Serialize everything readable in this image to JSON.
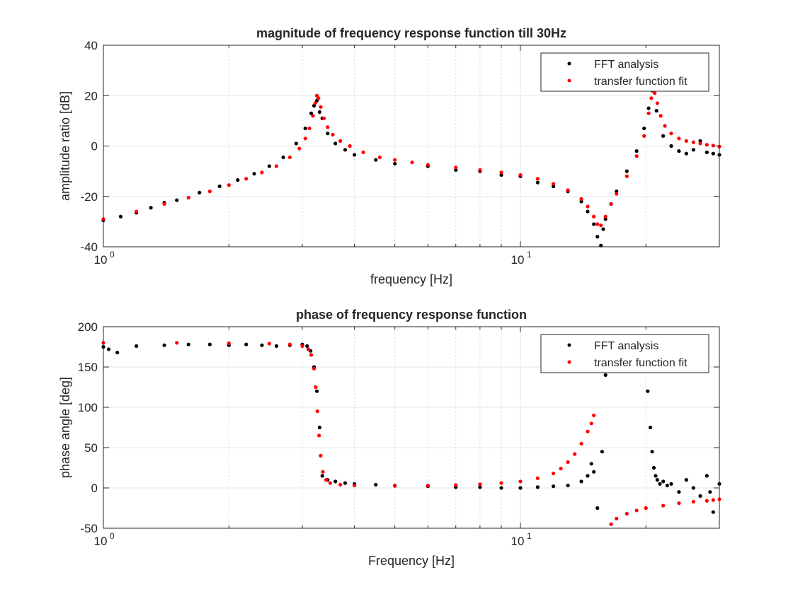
{
  "chart_data": [
    {
      "type": "scatter",
      "title": "magnitude of frequency response function till 30Hz",
      "xlabel": "frequency [Hz]",
      "ylabel": "amplitude ratio [dB]",
      "xscale": "log",
      "xlim": [
        1,
        30
      ],
      "ylim": [
        -40,
        40
      ],
      "yticks": [
        -40,
        -20,
        0,
        20,
        40
      ],
      "ytick_labels": [
        "-40",
        "-20",
        "0",
        "20",
        "40"
      ],
      "xtick_major": [
        1,
        10
      ],
      "xtick_labels": [
        {
          "base": "10",
          "exp": "0"
        },
        {
          "base": "10",
          "exp": "1"
        }
      ],
      "grid": true,
      "legend_position": "top-right",
      "series": [
        {
          "name": "FFT analysis",
          "color": "#000000",
          "x": [
            1.0,
            1.1,
            1.2,
            1.3,
            1.4,
            1.5,
            1.7,
            1.9,
            2.1,
            2.3,
            2.5,
            2.7,
            2.9,
            3.05,
            3.15,
            3.2,
            3.25,
            3.3,
            3.35,
            3.45,
            3.6,
            3.8,
            4.0,
            4.5,
            5.0,
            6.0,
            7.0,
            8.0,
            9.0,
            10.0,
            11.0,
            12.0,
            13.0,
            14.0,
            14.5,
            15.0,
            15.3,
            15.6,
            15.8,
            16.0,
            16.5,
            17.0,
            18.0,
            19.0,
            19.8,
            20.3,
            20.7,
            21.2,
            22.0,
            23.0,
            24.0,
            25.0,
            26.0,
            27.0,
            28.0,
            29.0,
            30.0
          ],
          "y": [
            -29.5,
            -28,
            -26.5,
            -24.5,
            -22.5,
            -21.5,
            -18.5,
            -16,
            -13.5,
            -11,
            -8,
            -4.5,
            1,
            7,
            13,
            16,
            18,
            13.5,
            11,
            5,
            1,
            -1.5,
            -3.5,
            -5.5,
            -7,
            -8,
            -9.5,
            -10,
            -11.5,
            -12,
            -14.5,
            -16,
            -18,
            -22,
            -26,
            -31,
            -36,
            -39.5,
            -33,
            -29,
            -23,
            -18,
            -10,
            -2,
            7,
            15,
            22,
            14,
            4,
            0,
            -2,
            -3,
            -1.5,
            2,
            -2.5,
            -3,
            -3.5
          ]
        },
        {
          "name": "transfer function fit",
          "color": "#ff0000",
          "x": [
            1.0,
            1.2,
            1.4,
            1.6,
            1.8,
            2.0,
            2.2,
            2.4,
            2.6,
            2.8,
            2.95,
            3.05,
            3.12,
            3.18,
            3.22,
            3.25,
            3.28,
            3.32,
            3.38,
            3.45,
            3.55,
            3.7,
            3.9,
            4.2,
            4.6,
            5.0,
            5.5,
            6.0,
            7.0,
            8.0,
            9.0,
            10.0,
            11.0,
            12.0,
            13.0,
            14.0,
            14.5,
            15.0,
            15.3,
            15.6,
            16.0,
            16.5,
            17.0,
            18.0,
            19.0,
            19.8,
            20.3,
            20.6,
            20.8,
            21.0,
            21.3,
            21.7,
            22.2,
            23.0,
            24.0,
            25.0,
            26.0,
            27.0,
            28.0,
            29.0,
            30.0
          ],
          "y": [
            -29,
            -26,
            -23,
            -20.5,
            -18,
            -15.5,
            -13,
            -10.5,
            -8,
            -4.5,
            -1,
            3,
            7,
            12,
            17,
            20,
            19,
            15.5,
            11,
            7.5,
            4.5,
            2,
            0,
            -2.5,
            -4.5,
            -5.5,
            -6.5,
            -7.5,
            -8.5,
            -9.5,
            -10.5,
            -11.5,
            -13,
            -15,
            -17.5,
            -21,
            -24,
            -28,
            -31,
            -31.5,
            -28,
            -23,
            -19,
            -12,
            -4,
            4,
            13,
            19,
            22,
            21,
            17,
            12,
            8,
            5,
            3,
            2,
            1.5,
            1,
            0.5,
            0.2,
            -0.2
          ]
        }
      ]
    },
    {
      "type": "scatter",
      "title": "phase of frequency response function",
      "xlabel": "Frequency [Hz]",
      "ylabel": "phase angle [deg]",
      "xscale": "log",
      "xlim": [
        1,
        30
      ],
      "ylim": [
        -50,
        200
      ],
      "yticks": [
        -50,
        0,
        50,
        100,
        150,
        200
      ],
      "ytick_labels": [
        "-50",
        "0",
        "50",
        "100",
        "150",
        "200"
      ],
      "xtick_major": [
        1,
        10
      ],
      "xtick_labels": [
        {
          "base": "10",
          "exp": "0"
        },
        {
          "base": "10",
          "exp": "1"
        }
      ],
      "grid": true,
      "legend_position": "top-right",
      "series": [
        {
          "name": "FFT analysis",
          "color": "#000000",
          "x": [
            1.0,
            1.03,
            1.08,
            1.2,
            1.4,
            1.6,
            1.8,
            2.0,
            2.2,
            2.4,
            2.6,
            2.8,
            3.0,
            3.08,
            3.14,
            3.2,
            3.25,
            3.3,
            3.35,
            3.45,
            3.6,
            3.8,
            4.0,
            4.5,
            5.0,
            6.0,
            7.0,
            8.0,
            9.0,
            10.0,
            11.0,
            12.0,
            13.0,
            14.0,
            14.5,
            14.8,
            15.0,
            15.3,
            15.7,
            16.0,
            20.2,
            20.5,
            20.7,
            20.9,
            21.1,
            21.3,
            21.6,
            22.0,
            22.5,
            23.0,
            24.0,
            25.0,
            26.0,
            27.0,
            28.0,
            28.5,
            29.0,
            30.0
          ],
          "y": [
            175,
            172,
            168,
            176,
            177,
            178,
            178,
            177,
            178,
            177,
            176,
            177,
            178,
            176,
            170,
            150,
            120,
            75,
            15,
            10,
            8,
            6,
            5,
            4,
            3,
            2,
            1,
            1,
            0,
            0,
            1,
            2,
            3,
            8,
            15,
            30,
            20,
            -25,
            45,
            140,
            120,
            75,
            45,
            25,
            15,
            10,
            5,
            8,
            3,
            5,
            -5,
            10,
            0,
            -10,
            15,
            -5,
            -30,
            5
          ]
        },
        {
          "name": "transfer function fit",
          "color": "#ff0000",
          "x": [
            1.0,
            1.5,
            2.0,
            2.5,
            2.8,
            3.0,
            3.1,
            3.15,
            3.2,
            3.23,
            3.26,
            3.29,
            3.32,
            3.36,
            3.42,
            3.5,
            3.7,
            4.0,
            5.0,
            6.0,
            7.0,
            8.0,
            9.0,
            10.0,
            11.0,
            12.0,
            12.5,
            13.0,
            13.5,
            14.0,
            14.5,
            14.8,
            15.0,
            16.0,
            16.5,
            17.0,
            18.0,
            19.0,
            20.0,
            22.0,
            24.0,
            26.0,
            28.0,
            29.0,
            30.0
          ],
          "y": [
            180,
            180,
            179.5,
            179,
            178,
            176,
            172,
            165,
            148,
            125,
            95,
            65,
            40,
            20,
            10,
            6,
            4,
            3,
            2.5,
            3,
            3.5,
            4.5,
            6,
            8,
            12,
            18,
            24,
            32,
            42,
            55,
            70,
            80,
            90,
            -52,
            -45,
            -38,
            -32,
            -28,
            -25,
            -22,
            -19,
            -17,
            -16,
            -15,
            -14
          ]
        }
      ]
    }
  ]
}
